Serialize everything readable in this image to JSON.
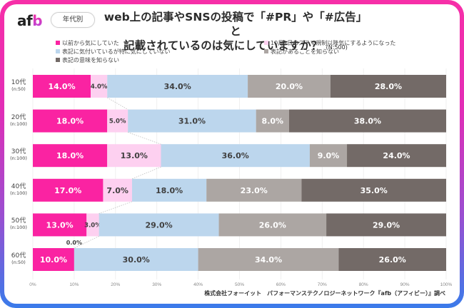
{
  "header": {
    "logo_text_a": "af",
    "logo_text_b": "b",
    "tag_label": "年代別",
    "title_line1": "web上の記事やSNSの投稿で「#PR」や「#広告」と",
    "title_line2": "記載されているのは気にしていますか？",
    "sample_size": "(N:500)"
  },
  "footer": {
    "source": "株式会社フォーイット　パフォーマンステクノロジーネットワーク『afb（アフィビー）』調べ"
  },
  "chart_data": {
    "type": "bar",
    "orientation": "horizontal-stacked-100",
    "title": "web上の記事やSNSの投稿で「#PR」や「#広告」と記載されているのは気にしていますか？",
    "xlim": [
      0,
      100
    ],
    "x_ticks": [
      "0%",
      "10%",
      "20%",
      "30%",
      "40%",
      "50%",
      "60%",
      "70%",
      "80%",
      "90%",
      "100%"
    ],
    "grid": true,
    "legend_position": "top",
    "categories": [
      {
        "label": "10代",
        "n": "(n:50)"
      },
      {
        "label": "20代",
        "n": "(n:100)"
      },
      {
        "label": "30代",
        "n": "(n:100)"
      },
      {
        "label": "40代",
        "n": "(n:100)"
      },
      {
        "label": "50代",
        "n": "(n:100)"
      },
      {
        "label": "60代",
        "n": "(n:50)"
      }
    ],
    "series": [
      {
        "name": "以前から気にしていた",
        "color": "#fa23a2",
        "label_color": "#ffffff",
        "values": [
          14.0,
          18.0,
          18.0,
          17.0,
          13.0,
          10.0
        ]
      },
      {
        "name": "10月1日のステマ規制以降気にするようになった",
        "color": "#fdd0f0",
        "label_color": "#404040",
        "values": [
          4.0,
          5.0,
          13.0,
          7.0,
          3.0,
          0.0
        ]
      },
      {
        "name": "表記に気付いているが特に気にしていない",
        "color": "#bcd6ed",
        "label_color": "#404040",
        "values": [
          34.0,
          31.0,
          36.0,
          18.0,
          29.0,
          30.0
        ]
      },
      {
        "name": "表記があることを知らない",
        "color": "#aca6a3",
        "label_color": "#ffffff",
        "values": [
          20.0,
          8.0,
          9.0,
          23.0,
          26.0,
          34.0
        ]
      },
      {
        "name": "表記の意味を知らない",
        "color": "#736a67",
        "label_color": "#ffffff",
        "values": [
          28.0,
          38.0,
          24.0,
          35.0,
          29.0,
          26.0
        ]
      }
    ],
    "series_lines": true
  }
}
